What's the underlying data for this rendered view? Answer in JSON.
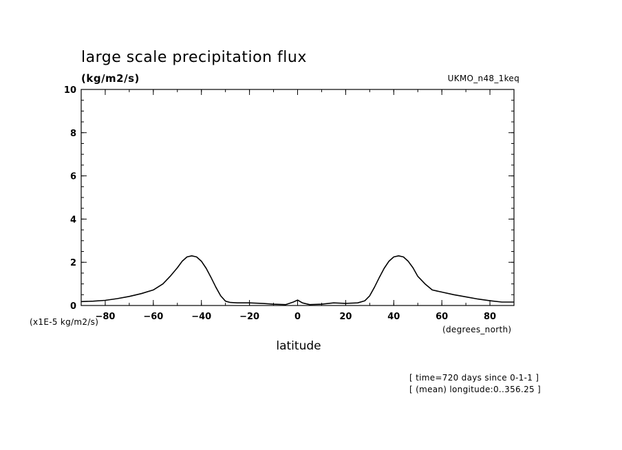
{
  "chart_data": {
    "type": "line",
    "title": "large scale precipitation flux",
    "ylabel": "(kg/m2/s)",
    "y_scale_label": "(x1E-5 kg/m2/s)",
    "xlabel": "latitude",
    "x_units": "(degrees_north)",
    "dataset_label": "UKMO_n48_1keq",
    "annotations": [
      "[ time=720 days since 0-1-1 ]",
      "[ (mean) longitude:0..356.25 ]"
    ],
    "xlim": [
      -90,
      90
    ],
    "ylim": [
      0,
      10
    ],
    "x_ticks": [
      -80,
      -60,
      -40,
      -20,
      0,
      20,
      40,
      60,
      80
    ],
    "y_ticks": [
      0,
      2,
      4,
      6,
      8,
      10
    ],
    "grid": false,
    "series": [
      {
        "x": [
          -90,
          -85,
          -80,
          -75,
          -70,
          -65,
          -60,
          -56,
          -53,
          -50,
          -48,
          -46,
          -44,
          -42,
          -40,
          -38,
          -36,
          -34,
          -32,
          -30,
          -28,
          -25,
          -20,
          -15,
          -10,
          -5,
          -2,
          0,
          2,
          5,
          10,
          15,
          20,
          25,
          28,
          30,
          32,
          34,
          36,
          38,
          40,
          42,
          44,
          46,
          48,
          50,
          53,
          56,
          60,
          65,
          70,
          75,
          80,
          85,
          90
        ],
        "y": [
          0.18,
          0.2,
          0.24,
          0.32,
          0.42,
          0.55,
          0.72,
          1.0,
          1.35,
          1.75,
          2.05,
          2.25,
          2.3,
          2.25,
          2.05,
          1.72,
          1.3,
          0.85,
          0.45,
          0.2,
          0.14,
          0.12,
          0.12,
          0.1,
          0.06,
          0.04,
          0.15,
          0.25,
          0.12,
          0.04,
          0.06,
          0.12,
          0.1,
          0.12,
          0.22,
          0.45,
          0.85,
          1.3,
          1.72,
          2.05,
          2.25,
          2.3,
          2.25,
          2.05,
          1.75,
          1.35,
          1.0,
          0.72,
          0.62,
          0.5,
          0.4,
          0.3,
          0.22,
          0.16,
          0.16
        ]
      }
    ]
  }
}
